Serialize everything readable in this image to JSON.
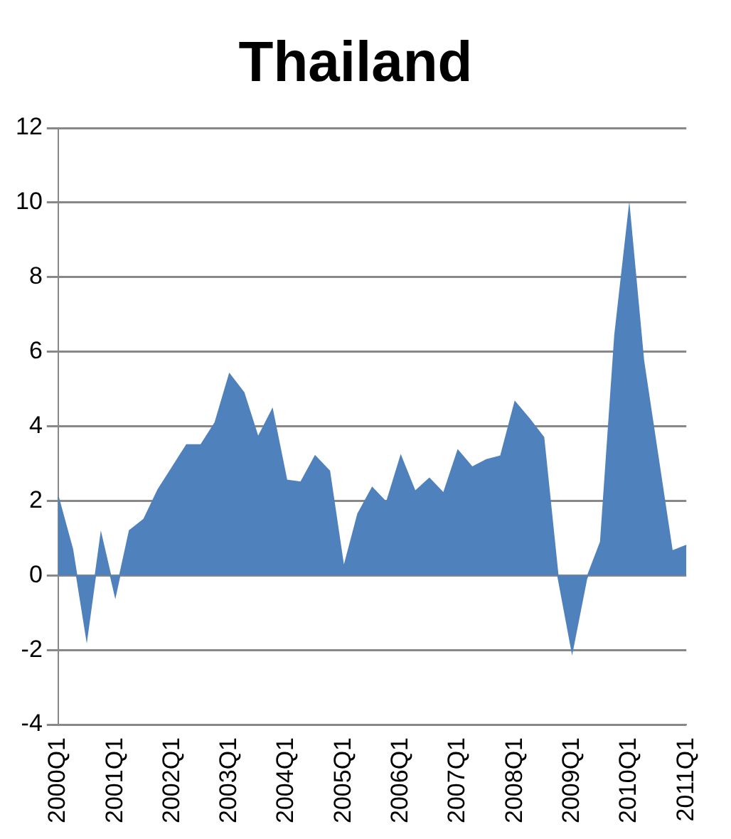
{
  "chart_data": {
    "type": "area",
    "title": "Thailand",
    "categories": [
      "2000Q1",
      null,
      null,
      null,
      "2001Q1",
      null,
      null,
      null,
      "2002Q1",
      null,
      null,
      null,
      "2003Q1",
      null,
      null,
      null,
      "2004Q1",
      null,
      null,
      null,
      "2005Q1",
      null,
      null,
      null,
      "2006Q1",
      null,
      null,
      null,
      "2007Q1",
      null,
      null,
      null,
      "2008Q1",
      null,
      null,
      null,
      "2009Q1",
      null,
      null,
      null,
      "2010Q1",
      null,
      null,
      null,
      "2011Q1"
    ],
    "series": [
      {
        "color": "#4f81bd",
        "values": [
          2.1,
          0.7,
          -1.7,
          1.1,
          -0.55,
          1.2,
          1.5,
          2.3,
          2.9,
          3.5,
          3.5,
          4.1,
          5.4,
          4.9,
          3.7,
          4.45,
          2.55,
          2.5,
          3.2,
          2.8,
          0.2,
          1.65,
          2.35,
          1.95,
          3.2,
          2.25,
          2.6,
          2.2,
          3.35,
          2.9,
          3.1,
          3.2,
          4.65,
          4.2,
          3.7,
          0,
          -2.05,
          -0.1,
          0.9,
          6.45,
          9.85,
          5.75,
          3.2,
          0.65,
          0.8
        ]
      }
    ],
    "ylim": [
      -4,
      12
    ],
    "yticks": [
      -4,
      -2,
      0,
      2,
      4,
      6,
      8,
      10,
      12
    ],
    "grid": "y",
    "legend": false
  }
}
